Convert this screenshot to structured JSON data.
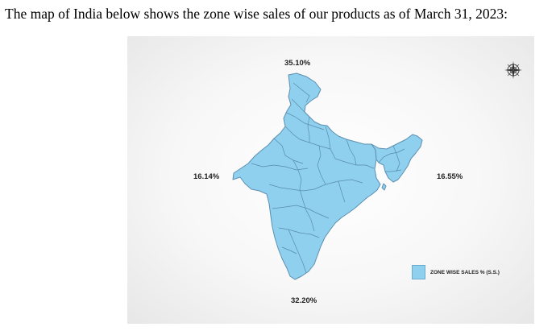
{
  "intro_text": "The map of India below shows the zone wise sales of our products as of March 31, 2023:",
  "map": {
    "zones": {
      "north": {
        "value": "35.10%"
      },
      "west": {
        "value": "16.14%"
      },
      "east": {
        "value": "16.55%"
      },
      "south": {
        "value": "32.20%"
      }
    },
    "legend": {
      "label": "ZONE WISE SALES % (S.S.)",
      "color": "#8fd0ee"
    },
    "compass": {
      "icon": "compass-rose-icon"
    },
    "fill_color": "#8fd0ee",
    "border_color": "#5d8fb0"
  }
}
